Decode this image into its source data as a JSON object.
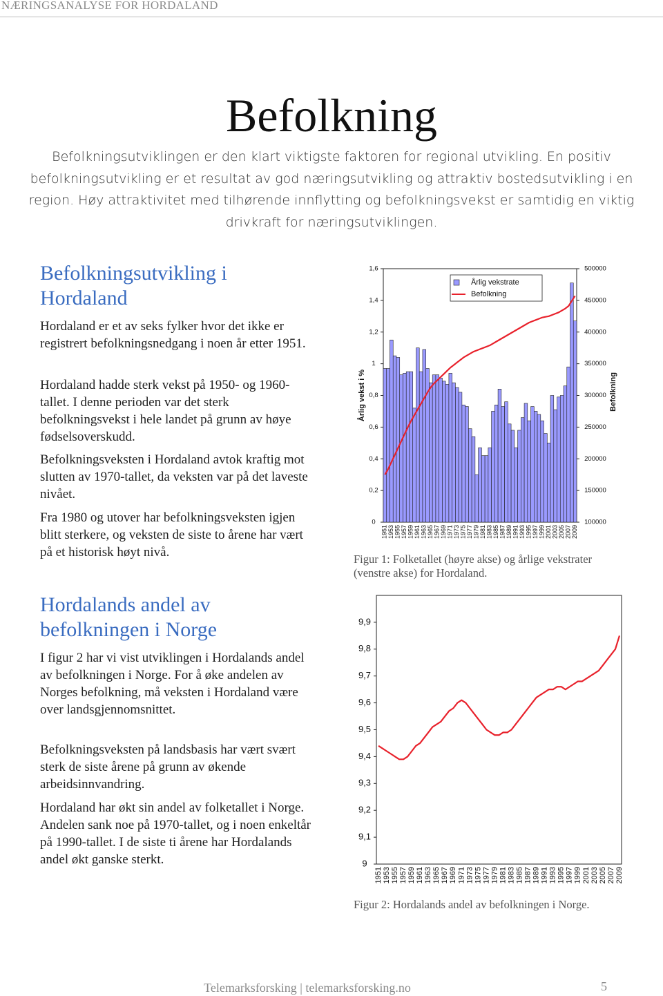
{
  "header": "NÆRINGSANALYSE FOR HORDALAND",
  "title": "Befolkning",
  "intro": "Befolkningsutviklingen er den klart viktigste faktoren for regional utvikling. En positiv befolkningsutvikling er et resultat av god næringsutvikling og attraktiv bostedsutvikling i en region. Høy attraktivitet med tilhørende innflytting og befolkningsvekst er samtidig en viktig drivkraft for næringsutviklingen.",
  "sections": [
    {
      "heading": "Befolkningsutvikling i Hordaland",
      "paragraphs": [
        "Hordaland er et av seks fylker hvor det ikke er registrert befolkningsnedgang i noen år etter 1951.",
        "Hordaland hadde sterk vekst på 1950- og 1960-tallet. I denne perioden var det sterk befolkningsvekst i hele landet på grunn av høye fødselsoverskudd.",
        "Befolkningsveksten i Hordaland avtok kraftig mot slutten av 1970-tallet, da veksten var på det laveste nivået.",
        "Fra 1980 og utover har befolkningsveksten igjen blitt sterkere, og veksten de siste to årene har vært på et historisk høyt nivå."
      ]
    },
    {
      "heading": "Hordalands andel av befolkningen i Norge",
      "paragraphs": [
        "I figur 2 har vi vist utviklingen i Hordalands andel av befolkningen i Norge. For å øke andelen av Norges befolkning, må veksten i Hordaland være over landsgjennomsnittet.",
        "Befolkningsveksten på landsbasis har vært svært sterk de siste årene på grunn av økende arbeidsinnvandring.",
        "Hordaland har økt sin andel av folketallet i Norge. Andelen sank noe på 1970-tallet, og i noen enkeltår på 1990-tallet. I de siste ti årene har Hordalands andel økt ganske sterkt."
      ]
    }
  ],
  "chart_data": [
    {
      "type": "bar",
      "caption": "Figur 1: Folketallet (høyre akse) og årlige vekstrater (venstre akse) for Hordaland.",
      "y_label": "Årlig vekst i %",
      "y2_label": "Befolkning",
      "categories": [
        "1951",
        null,
        "1953",
        null,
        "1955",
        null,
        "1957",
        null,
        "1959",
        null,
        "1961",
        null,
        "1963",
        null,
        "1965",
        null,
        "1967",
        null,
        "1969",
        null,
        "1971",
        null,
        "1973",
        null,
        "1975",
        null,
        "1977",
        null,
        "1979",
        null,
        "1981",
        null,
        "1983",
        null,
        "1985",
        null,
        "1987",
        null,
        "1989",
        null,
        "1991",
        null,
        "1993",
        null,
        "1995",
        null,
        "1997",
        null,
        "1999",
        null,
        "2001",
        null,
        "2003",
        null,
        "2005",
        null,
        "2007",
        null,
        "2009"
      ],
      "series": [
        {
          "name": "Årlig vekstrate",
          "type": "bar",
          "color": "#9a9aff",
          "values": [
            0.97,
            0.97,
            1.15,
            1.05,
            1.04,
            0.93,
            0.94,
            0.95,
            0.95,
            0.72,
            1.1,
            0.95,
            1.09,
            0.97,
            0.88,
            0.93,
            0.93,
            0.91,
            0.89,
            0.87,
            0.94,
            0.88,
            0.85,
            0.82,
            0.74,
            0.73,
            0.59,
            0.54,
            0.3,
            0.47,
            0.42,
            0.42,
            0.47,
            0.7,
            0.74,
            0.84,
            0.73,
            0.76,
            0.62,
            0.58,
            0.47,
            0.58,
            0.66,
            0.75,
            0.64,
            0.73,
            0.7,
            0.68,
            0.64,
            0.56,
            0.5,
            0.8,
            0.71,
            0.79,
            0.8,
            0.86,
            0.98,
            1.51,
            1.27
          ]
        },
        {
          "name": "Befolkning",
          "type": "line",
          "axis": "y2",
          "color": "#e8212b",
          "values": [
            175000,
            184000,
            195000,
            206000,
            217000,
            228000,
            239000,
            250000,
            260000,
            269000,
            278000,
            287000,
            296000,
            305000,
            313000,
            319000,
            324000,
            329000,
            334000,
            339000,
            344000,
            348000,
            352000,
            356000,
            360000,
            363000,
            366000,
            369000,
            371000,
            373000,
            375000,
            377000,
            379000,
            382000,
            385000,
            388000,
            391000,
            394000,
            397000,
            400000,
            403000,
            406000,
            409000,
            412000,
            415000,
            417000,
            419000,
            421000,
            423000,
            424000,
            425000,
            427000,
            429000,
            431000,
            434000,
            437000,
            441000,
            449000,
            457000
          ]
        }
      ],
      "ylim": [
        0,
        1.6
      ],
      "yticks": [
        0,
        {
          "value": 0.2,
          "label": "0,2"
        },
        {
          "value": 0.4,
          "label": "0,4"
        },
        {
          "value": 0.6,
          "label": "0,6"
        },
        {
          "value": 0.8,
          "label": "0,8"
        },
        1,
        {
          "value": 1.2,
          "label": "1,2"
        },
        {
          "value": 1.4,
          "label": "1,4"
        },
        {
          "value": 1.6,
          "label": "1,6"
        }
      ],
      "y2lim": [
        100000,
        500000
      ],
      "y2ticks": [
        100000,
        150000,
        200000,
        250000,
        300000,
        350000,
        400000,
        450000,
        500000
      ],
      "legend": "top-center"
    },
    {
      "type": "line",
      "caption": "Figur 2: Hordalands andel av befolkningen i Norge.",
      "categories": [
        "1951",
        null,
        "1953",
        null,
        "1955",
        null,
        "1957",
        null,
        "1959",
        null,
        "1961",
        null,
        "1963",
        null,
        "1965",
        null,
        "1967",
        null,
        "1969",
        null,
        "1971",
        null,
        "1973",
        null,
        "1975",
        null,
        "1977",
        null,
        "1979",
        null,
        "1981",
        null,
        "1983",
        null,
        "1985",
        null,
        "1987",
        null,
        "1989",
        null,
        "1991",
        null,
        "1993",
        null,
        "1995",
        null,
        "1997",
        null,
        "1999",
        null,
        "2001",
        null,
        "2003",
        null,
        "2005",
        null,
        "2007",
        null,
        "2009"
      ],
      "color": "#e8212b",
      "values": [
        9.44,
        9.43,
        9.42,
        9.41,
        9.4,
        9.39,
        9.39,
        9.4,
        9.42,
        9.44,
        9.45,
        9.47,
        9.49,
        9.51,
        9.52,
        9.53,
        9.55,
        9.57,
        9.58,
        9.6,
        9.61,
        9.6,
        9.58,
        9.56,
        9.54,
        9.52,
        9.5,
        9.49,
        9.48,
        9.48,
        9.49,
        9.49,
        9.5,
        9.52,
        9.54,
        9.56,
        9.58,
        9.6,
        9.62,
        9.63,
        9.64,
        9.65,
        9.65,
        9.66,
        9.66,
        9.65,
        9.66,
        9.67,
        9.68,
        9.68,
        9.69,
        9.7,
        9.71,
        9.72,
        9.74,
        9.76,
        9.78,
        9.8,
        9.85
      ],
      "ylim": [
        9,
        10
      ],
      "yticks": [
        9,
        {
          "value": 9.1,
          "label": "9,1"
        },
        {
          "value": 9.2,
          "label": "9,2"
        },
        {
          "value": 9.3,
          "label": "9,3"
        },
        {
          "value": 9.4,
          "label": "9,4"
        },
        {
          "value": 9.5,
          "label": "9,5"
        },
        {
          "value": 9.6,
          "label": "9,6"
        },
        {
          "value": 9.7,
          "label": "9,7"
        },
        {
          "value": 9.8,
          "label": "9,8"
        },
        {
          "value": 9.9,
          "label": "9,9"
        }
      ]
    }
  ],
  "footer": {
    "text": "Telemarksforsking | telemarksforsking.no",
    "page": "5"
  }
}
